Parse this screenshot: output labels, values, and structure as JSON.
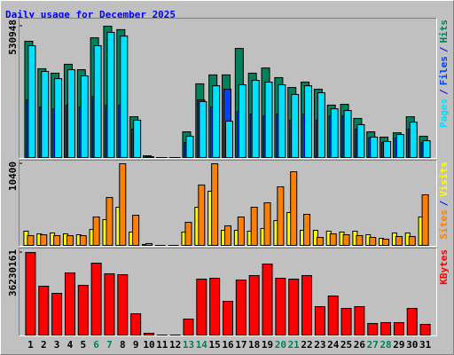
{
  "chart_data": [
    {
      "type": "bar",
      "title": "Daily usage for December 2025",
      "ylim": [
        0,
        530948
      ],
      "yticks": [
        530948
      ],
      "legend_separator": "/",
      "series": [
        {
          "name": "Hits",
          "color": "#00805C",
          "values": [
            470000,
            359000,
            341000,
            377000,
            355000,
            484000,
            530948,
            517000,
            165000,
            7000,
            0,
            0,
            104000,
            298000,
            334000,
            334000,
            441000,
            341000,
            362000,
            323000,
            283000,
            305000,
            276000,
            212000,
            215000,
            158000,
            104000,
            82500,
            100000,
            165000,
            86000
          ]
        },
        {
          "name": "Files",
          "color": "#0040FF",
          "values": [
            233000,
            204000,
            197000,
            211000,
            204000,
            247000,
            211000,
            211000,
            115000,
            3000,
            0,
            0,
            61000,
            233000,
            204000,
            276000,
            186000,
            176000,
            168000,
            176000,
            151000,
            176000,
            151000,
            168000,
            168000,
            115000,
            79000,
            61000,
            79000,
            115000,
            61000
          ]
        },
        {
          "name": "Pages",
          "color": "#00E0FF",
          "values": [
            452000,
            348000,
            319000,
            355000,
            330000,
            452000,
            506000,
            491000,
            151000,
            3000,
            0,
            0,
            86000,
            226000,
            290000,
            147000,
            294000,
            312000,
            305000,
            294000,
            255000,
            290000,
            262000,
            197000,
            190000,
            133000,
            82500,
            64600,
            93000,
            143000,
            68000
          ]
        }
      ]
    },
    {
      "type": "bar",
      "ylim": [
        0,
        10400
      ],
      "yticks": [
        10400
      ],
      "legend_separator": "/",
      "series": [
        {
          "name": "Visits",
          "color": "#FFFF00",
          "values": [
            1810,
            1470,
            1580,
            1470,
            1360,
            2030,
            3280,
            4860,
            1700,
            110,
            0,
            0,
            1700,
            4860,
            6900,
            1920,
            1920,
            1810,
            2150,
            3170,
            4180,
            1920,
            1920,
            1810,
            1700,
            1810,
            1360,
            900,
            1580,
            1580,
            3620
          ]
        },
        {
          "name": "Sites",
          "color": "#FF8000",
          "values": [
            1240,
            1360,
            1240,
            1240,
            1240,
            3620,
            6100,
            10400,
            3840,
            230,
            0,
            0,
            2940,
            7690,
            10400,
            2490,
            3620,
            4860,
            5430,
            7460,
            9380,
            3960,
            1020,
            1470,
            1360,
            1240,
            1020,
            790,
            1130,
            1130,
            6440
          ]
        }
      ]
    },
    {
      "type": "bar",
      "ylim": [
        0,
        36230161
      ],
      "yticks": [
        36230161
      ],
      "categories": [
        "1",
        "2",
        "3",
        "4",
        "5",
        "6",
        "7",
        "8",
        "9",
        "10",
        "11",
        "12",
        "13",
        "14",
        "15",
        "16",
        "17",
        "18",
        "19",
        "20",
        "21",
        "22",
        "23",
        "24",
        "25",
        "26",
        "27",
        "28",
        "29",
        "30",
        "31"
      ],
      "category_label_colors": [
        "#000000",
        "#000000",
        "#000000",
        "#000000",
        "#000000",
        "#00805C",
        "#00805C",
        "#000000",
        "#000000",
        "#000000",
        "#000000",
        "#000000",
        "#00805C",
        "#00805C",
        "#000000",
        "#000000",
        "#000000",
        "#000000",
        "#000000",
        "#00805C",
        "#00805C",
        "#000000",
        "#000000",
        "#000000",
        "#000000",
        "#000000",
        "#00805C",
        "#00805C",
        "#000000",
        "#000000",
        "#000000"
      ],
      "series": [
        {
          "name": "KBytes",
          "color": "#FF0000",
          "values": [
            36230161,
            21430000,
            18310000,
            27270000,
            21820000,
            31560000,
            26880000,
            26490000,
            9350000,
            780000,
            0,
            0,
            7010000,
            24540000,
            24930000,
            14800000,
            24150000,
            26100000,
            31170000,
            24930000,
            24540000,
            26100000,
            12470000,
            17140000,
            11690000,
            12470000,
            5060000,
            5450000,
            5450000,
            11690000,
            4670000
          ]
        }
      ]
    }
  ]
}
